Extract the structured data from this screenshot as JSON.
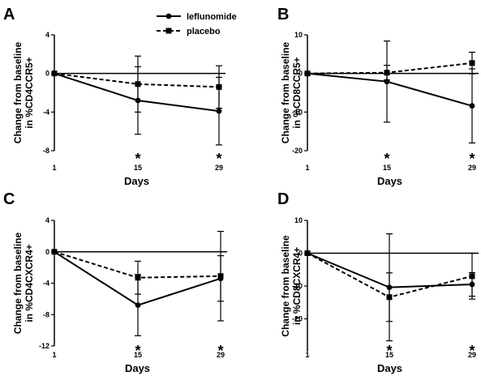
{
  "legend": {
    "leflunomide": "leflunomide",
    "placebo": "placebo"
  },
  "chart_data": [
    {
      "type": "line",
      "panel": "A",
      "ylabel_line1": "Change from baseline",
      "ylabel_line2": "in %CD4CCR5+",
      "xlabel": "Days",
      "x": [
        1,
        15,
        29
      ],
      "x_tick_labels": [
        "1",
        "15",
        "29"
      ],
      "ylim": [
        -8,
        4
      ],
      "y_ticks": [
        4,
        0,
        -4,
        -8
      ],
      "y_tick_labels": [
        "4",
        "0",
        "-4",
        "-8"
      ],
      "significance_marks": [
        {
          "x": 15,
          "label": "*"
        },
        {
          "x": 29,
          "label": "*"
        }
      ],
      "series": [
        {
          "name": "leflunomide",
          "values": [
            0,
            -2.8,
            -3.9
          ],
          "error": [
            0,
            3.5,
            3.5
          ],
          "style": "solid",
          "marker": "circle"
        },
        {
          "name": "placebo",
          "values": [
            0,
            -1.1,
            -1.4
          ],
          "error": [
            0,
            2.9,
            2.2
          ],
          "style": "dashed",
          "marker": "square"
        }
      ]
    },
    {
      "type": "line",
      "panel": "B",
      "ylabel_line1": "Change from baseline",
      "ylabel_line2": "in %CD8CCR5+",
      "xlabel": "Days",
      "x": [
        1,
        15,
        29
      ],
      "x_tick_labels": [
        "1",
        "15",
        "29"
      ],
      "ylim": [
        -20,
        10
      ],
      "y_ticks": [
        10,
        0,
        -10,
        -20
      ],
      "y_tick_labels": [
        "10",
        "0",
        "-10",
        "-20"
      ],
      "significance_marks": [
        {
          "x": 15,
          "label": "*"
        },
        {
          "x": 29,
          "label": "*"
        }
      ],
      "series": [
        {
          "name": "leflunomide",
          "values": [
            0,
            -2.1,
            -8.4
          ],
          "error": [
            0,
            10.5,
            9.6
          ],
          "style": "solid",
          "marker": "circle"
        },
        {
          "name": "placebo",
          "values": [
            0,
            0.2,
            2.7
          ],
          "error": [
            0,
            1.9,
            2.8
          ],
          "style": "dashed",
          "marker": "square"
        }
      ]
    },
    {
      "type": "line",
      "panel": "C",
      "ylabel_line1": "Change from baseline",
      "ylabel_line2": "in %CD4CXCR4+",
      "xlabel": "Days",
      "x": [
        1,
        15,
        29
      ],
      "x_tick_labels": [
        "1",
        "15",
        "29"
      ],
      "ylim": [
        -12,
        4
      ],
      "y_ticks": [
        4,
        0,
        -4,
        -8,
        -12
      ],
      "y_tick_labels": [
        "4",
        "0",
        "-4",
        "-8",
        "-12"
      ],
      "significance_marks": [
        {
          "x": 15,
          "label": "*"
        },
        {
          "x": 29,
          "label": "*"
        }
      ],
      "series": [
        {
          "name": "leflunomide",
          "values": [
            0,
            -6.8,
            -3.4
          ],
          "error": [
            0,
            3.9,
            2.9
          ],
          "style": "solid",
          "marker": "circle"
        },
        {
          "name": "placebo",
          "values": [
            0,
            -3.3,
            -3.1
          ],
          "error": [
            0,
            2.1,
            5.7
          ],
          "style": "dashed",
          "marker": "square"
        }
      ]
    },
    {
      "type": "line",
      "panel": "D",
      "ylabel_line1": "Change from baseline",
      "ylabel_line2": "in %CD8CXCR4+",
      "xlabel": "Days",
      "x": [
        1,
        15,
        29
      ],
      "x_tick_labels": [
        "1",
        "15",
        "29"
      ],
      "ylim": [
        -30,
        10
      ],
      "y_ticks": [
        10,
        0,
        -10,
        -20
      ],
      "y_tick_labels": [
        "10",
        "0",
        "-10",
        "-20"
      ],
      "significance_marks": [
        {
          "x": 15,
          "label": "*"
        },
        {
          "x": 29,
          "label": "*"
        }
      ],
      "series": [
        {
          "name": "leflunomide",
          "values": [
            0,
            -10.4,
            -9.5
          ],
          "error": [
            0,
            16.3,
            3.6
          ],
          "style": "solid",
          "marker": "circle"
        },
        {
          "name": "placebo",
          "values": [
            0,
            -13.4,
            -7.0
          ],
          "error": [
            0,
            7.4,
            7.0
          ],
          "style": "dashed",
          "marker": "square"
        }
      ]
    }
  ]
}
